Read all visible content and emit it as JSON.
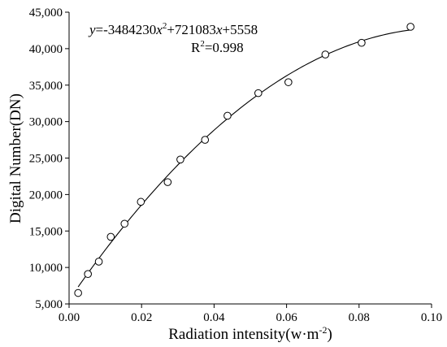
{
  "chart_data": {
    "type": "scatter",
    "xlabel": "Radiation intensity(w·m",
    "xlabel_sup": "-2",
    "xlabel_close": ")",
    "ylabel": "Digital Number(DN)",
    "xlim": [
      0.0,
      0.1
    ],
    "ylim": [
      5000,
      45000
    ],
    "x_ticks": [
      0.0,
      0.02,
      0.04,
      0.06,
      0.08,
      0.1
    ],
    "x_tick_labels": [
      "0.00",
      "0.02",
      "0.04",
      "0.06",
      "0.08",
      "0.10"
    ],
    "y_ticks": [
      5000,
      10000,
      15000,
      20000,
      25000,
      30000,
      35000,
      40000,
      45000
    ],
    "y_tick_labels": [
      "5,000",
      "10,000",
      "15,000",
      "20,000",
      "25,000",
      "30,000",
      "35,000",
      "40,000",
      "45,000"
    ],
    "grid": false,
    "legend": "none",
    "points": [
      {
        "x": 0.0025,
        "y": 6500
      },
      {
        "x": 0.0052,
        "y": 9100
      },
      {
        "x": 0.0082,
        "y": 10800
      },
      {
        "x": 0.0115,
        "y": 14200
      },
      {
        "x": 0.0153,
        "y": 16000
      },
      {
        "x": 0.0198,
        "y": 19000
      },
      {
        "x": 0.0272,
        "y": 21700
      },
      {
        "x": 0.0307,
        "y": 24800
      },
      {
        "x": 0.0375,
        "y": 27500
      },
      {
        "x": 0.0437,
        "y": 30800
      },
      {
        "x": 0.0522,
        "y": 33900
      },
      {
        "x": 0.0605,
        "y": 35400
      },
      {
        "x": 0.0707,
        "y": 39200
      },
      {
        "x": 0.0807,
        "y": 40800
      },
      {
        "x": 0.0942,
        "y": 43000
      }
    ],
    "fit": {
      "a": -3484230,
      "b": 721083,
      "c": 5558,
      "x_range": [
        0.0025,
        0.0942
      ]
    },
    "equation": {
      "y_var": "y",
      "part1": "=-3484230",
      "x_var1": "x",
      "sup": "2",
      "part2": "+721083",
      "x_var2": "x",
      "part3": "+5558",
      "r2_label": "R",
      "r2_sup": "2",
      "r2_value": "=0.998"
    }
  }
}
